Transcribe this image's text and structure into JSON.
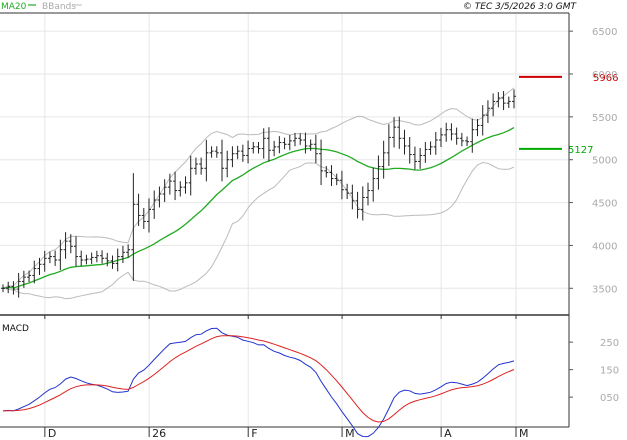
{
  "header": {
    "legend_ma": "MA20",
    "legend_bbands": "BBands",
    "copyright": "© TEC 3/5/2026 3:0 GMT"
  },
  "colors": {
    "ma20": "#22aa22",
    "bbands": "#bbbbbb",
    "price_bars": "#222222",
    "macd_line": "#2233cc",
    "macd_signal": "#dd2222",
    "resistance": "#cc0000",
    "support": "#00aa00",
    "grid": "#e6e6e6"
  },
  "chart_data": [
    {
      "type": "ohlc",
      "ylim": [
        3200,
        6700
      ],
      "y_ticks": [
        6500,
        6000,
        5500,
        5000,
        4500,
        4000,
        3500
      ],
      "x_ticks": [
        "D",
        "26",
        "F",
        "M",
        "A",
        "M"
      ],
      "grid": true,
      "levels": [
        {
          "label": "5966",
          "value": 5966,
          "kind": "resistance"
        },
        {
          "label": "5127",
          "value": 5127,
          "kind": "support"
        }
      ],
      "close": [
        3500,
        3520,
        3490,
        3580,
        3630,
        3650,
        3730,
        3780,
        3850,
        3870,
        3830,
        3950,
        4050,
        3990,
        3870,
        3830,
        3840,
        3860,
        3880,
        3850,
        3820,
        3790,
        3870,
        3920,
        3950,
        4480,
        4350,
        4280,
        4420,
        4530,
        4600,
        4680,
        4750,
        4640,
        4680,
        4730,
        4900,
        4950,
        4900,
        5080,
        5100,
        5080,
        4900,
        5000,
        5070,
        5100,
        5050,
        5130,
        5150,
        5130,
        5250,
        5110,
        5150,
        5200,
        5180,
        5220,
        5250,
        5230,
        5160,
        5180,
        5070,
        4870,
        4850,
        4780,
        4760,
        4650,
        4610,
        4520,
        4420,
        4560,
        4640,
        4780,
        4920,
        5080,
        5260,
        5380,
        5250,
        5160,
        5060,
        4980,
        5050,
        5120,
        5150,
        5230,
        5290,
        5350,
        5300,
        5250,
        5220,
        5210,
        5350,
        5400,
        5520,
        5600,
        5680,
        5720,
        5660,
        5680,
        5740
      ]
    },
    {
      "type": "line",
      "title": "MACD",
      "ylim": [
        -0.55,
        3.45
      ],
      "y_ticks": [
        2.5,
        1.5,
        0.5
      ],
      "y_tick_labels": [
        "250",
        "150",
        "050"
      ]
    }
  ]
}
